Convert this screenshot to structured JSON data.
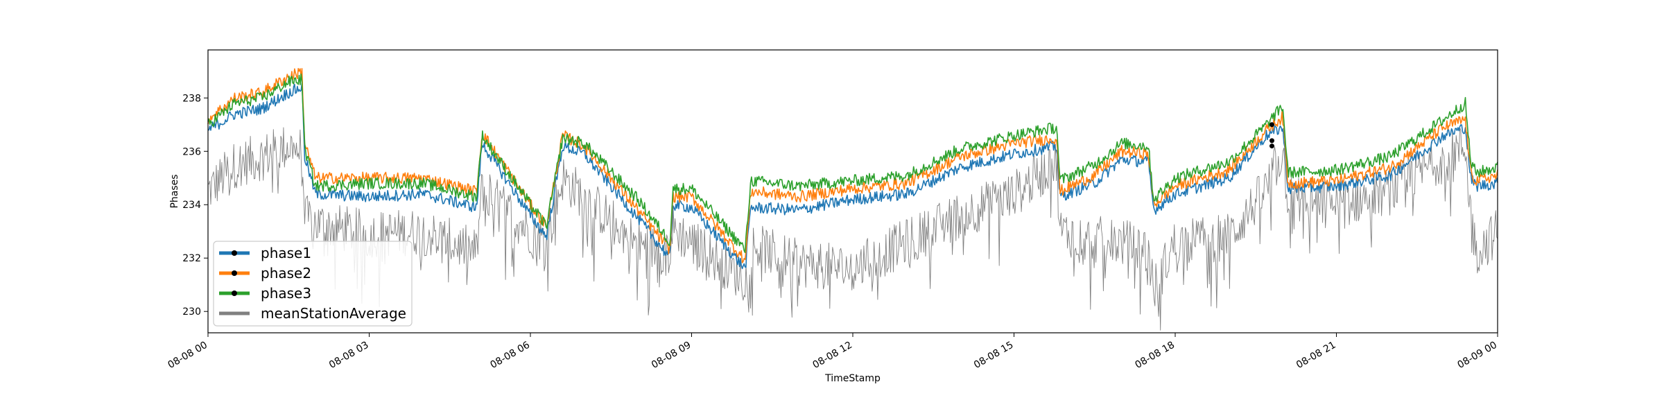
{
  "chart_data": {
    "type": "line",
    "xlabel": "TimeStamp",
    "ylabel": "Phases",
    "xlim": [
      "08-08 00:00",
      "08-09 00:00"
    ],
    "ylim": [
      229.2,
      239.8
    ],
    "grid": false,
    "legend_placement": "lower-left",
    "x_ticks": [
      {
        "hour": 0,
        "label": "08-08 00"
      },
      {
        "hour": 3,
        "label": "08-08 03"
      },
      {
        "hour": 6,
        "label": "08-08 06"
      },
      {
        "hour": 9,
        "label": "08-08 09"
      },
      {
        "hour": 12,
        "label": "08-08 12"
      },
      {
        "hour": 15,
        "label": "08-08 15"
      },
      {
        "hour": 18,
        "label": "08-08 18"
      },
      {
        "hour": 21,
        "label": "08-08 21"
      },
      {
        "hour": 24,
        "label": "08-09 00"
      }
    ],
    "y_ticks": [
      230,
      232,
      234,
      236,
      238
    ],
    "series": [
      {
        "name": "phase1",
        "color": "#1f77b4",
        "marker": "black-dot",
        "x": [
          0.0,
          0.5,
          1.0,
          1.5,
          1.75,
          1.8,
          2.0,
          3.0,
          4.0,
          5.0,
          5.1,
          6.0,
          6.3,
          6.6,
          7.0,
          8.0,
          8.6,
          8.65,
          9.0,
          10.0,
          10.1,
          11.0,
          12.0,
          13.0,
          14.0,
          15.0,
          15.8,
          15.85,
          16.5,
          17.0,
          17.5,
          17.6,
          18.0,
          19.0,
          19.7,
          20.0,
          20.1,
          21.0,
          22.0,
          23.0,
          23.4,
          23.5,
          23.6,
          24.0
        ],
        "y": [
          236.8,
          237.4,
          237.6,
          238.2,
          238.4,
          235.8,
          234.4,
          234.3,
          234.4,
          233.9,
          236.3,
          233.6,
          232.8,
          236.2,
          235.9,
          233.5,
          232.0,
          234.0,
          233.9,
          231.6,
          233.9,
          233.8,
          234.2,
          234.4,
          235.4,
          235.9,
          236.2,
          234.3,
          234.8,
          235.7,
          235.6,
          233.8,
          234.4,
          235.0,
          236.6,
          236.9,
          234.6,
          234.7,
          235.1,
          236.6,
          236.9,
          235.0,
          234.7,
          234.8
        ]
      },
      {
        "name": "phase2",
        "color": "#ff7f0e",
        "marker": "black-dot",
        "x": [
          0.0,
          0.5,
          1.0,
          1.5,
          1.75,
          1.8,
          2.0,
          3.0,
          4.0,
          5.0,
          5.1,
          6.0,
          6.3,
          6.6,
          7.0,
          8.0,
          8.6,
          8.65,
          9.0,
          10.0,
          10.1,
          11.0,
          12.0,
          13.0,
          14.0,
          15.0,
          15.8,
          15.85,
          16.5,
          17.0,
          17.5,
          17.6,
          18.0,
          19.0,
          19.7,
          20.0,
          20.1,
          21.0,
          22.0,
          23.0,
          23.4,
          23.5,
          23.6,
          24.0
        ],
        "y": [
          237.2,
          238.0,
          238.2,
          238.8,
          239.0,
          236.3,
          235.0,
          235.0,
          235.0,
          234.5,
          236.7,
          234.0,
          233.2,
          236.6,
          236.2,
          233.8,
          232.3,
          234.3,
          234.3,
          231.9,
          234.5,
          234.3,
          234.6,
          234.8,
          235.8,
          236.3,
          236.5,
          234.5,
          235.1,
          236.0,
          235.9,
          234.0,
          234.7,
          235.3,
          236.8,
          237.3,
          234.8,
          234.9,
          235.4,
          236.9,
          237.2,
          235.2,
          234.9,
          235.1
        ]
      },
      {
        "name": "phase3",
        "color": "#2ca02c",
        "marker": "black-dot",
        "x": [
          0.0,
          0.5,
          1.0,
          1.5,
          1.75,
          1.8,
          2.0,
          3.0,
          4.0,
          5.0,
          5.1,
          6.0,
          6.3,
          6.6,
          7.0,
          8.0,
          8.6,
          8.65,
          9.0,
          10.0,
          10.1,
          11.0,
          12.0,
          13.0,
          14.0,
          15.0,
          15.8,
          15.85,
          16.5,
          17.0,
          17.5,
          17.6,
          18.0,
          19.0,
          19.7,
          20.0,
          20.1,
          21.0,
          22.0,
          23.0,
          23.4,
          23.5,
          23.6,
          24.0
        ],
        "y": [
          237.0,
          237.8,
          238.0,
          238.6,
          238.7,
          236.1,
          234.7,
          234.8,
          234.8,
          234.3,
          236.6,
          234.0,
          233.2,
          236.5,
          236.3,
          234.2,
          232.6,
          234.6,
          234.6,
          232.3,
          234.9,
          234.7,
          234.9,
          235.1,
          236.1,
          236.6,
          236.9,
          234.9,
          235.5,
          236.3,
          236.2,
          234.2,
          235.0,
          235.6,
          237.0,
          237.7,
          235.2,
          235.3,
          235.8,
          237.2,
          237.8,
          235.6,
          235.2,
          235.4
        ]
      },
      {
        "name": "meanStationAverage",
        "color": "#808080",
        "marker": "none",
        "x": [
          0.0,
          0.5,
          1.0,
          1.5,
          1.75,
          1.8,
          2.0,
          3.0,
          4.0,
          5.0,
          5.1,
          6.0,
          6.3,
          6.6,
          7.0,
          8.0,
          8.6,
          8.65,
          9.0,
          10.0,
          10.1,
          11.0,
          12.0,
          13.0,
          14.0,
          15.0,
          15.8,
          15.85,
          16.5,
          17.0,
          17.5,
          17.6,
          18.0,
          19.0,
          19.7,
          20.0,
          20.1,
          21.0,
          22.0,
          23.0,
          23.4,
          23.5,
          23.6,
          24.0
        ],
        "y": [
          234.5,
          235.5,
          235.8,
          236.2,
          236.0,
          233.5,
          233.3,
          232.9,
          233.0,
          232.2,
          234.6,
          233.0,
          232.6,
          235.0,
          234.3,
          232.5,
          232.2,
          233.1,
          232.6,
          231.2,
          232.5,
          231.8,
          231.6,
          232.6,
          233.6,
          234.4,
          235.6,
          233.0,
          232.7,
          232.6,
          232.3,
          230.8,
          232.6,
          232.8,
          234.6,
          236.0,
          234.3,
          234.0,
          234.5,
          235.8,
          236.2,
          233.7,
          232.2,
          233.0
        ]
      }
    ],
    "annotations": [
      {
        "series": "phase1",
        "x": 19.8,
        "y": 236.2
      },
      {
        "series": "phase2",
        "x": 19.8,
        "y": 236.4
      },
      {
        "series": "phase3",
        "x": 19.8,
        "y": 237.0
      }
    ]
  }
}
